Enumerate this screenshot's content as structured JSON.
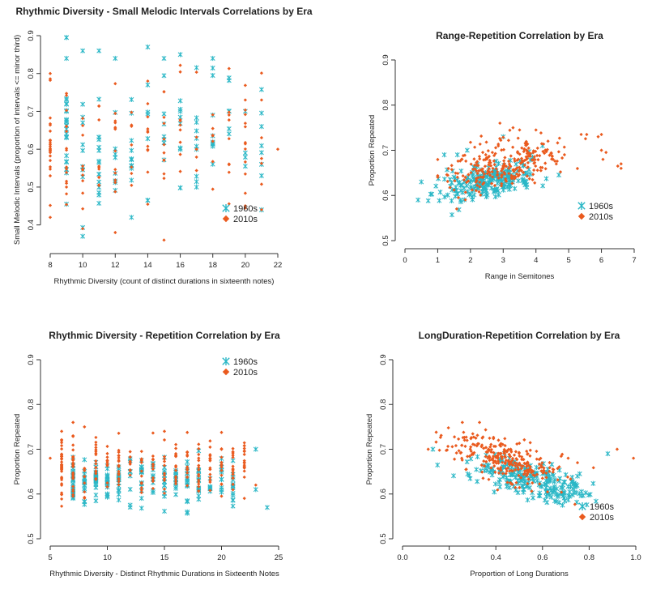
{
  "colors": {
    "series_1960s": "#2ab7c6",
    "series_2010s": "#ea5a1e",
    "axis": "#333333"
  },
  "chart_data": [
    {
      "type": "scatter",
      "title": "Rhythmic Diversity - Small Melodic Intervals Correlations by Era",
      "xlabel": "Rhythmic Diversity (count of distinct durations in sixteenth notes)",
      "ylabel": "Small Melodic Intervals (proportion of intervals <= minor third)",
      "xlim": [
        8,
        22
      ],
      "ylim": [
        0.35,
        0.9
      ],
      "xticks": [
        8,
        10,
        12,
        14,
        16,
        18,
        20,
        22
      ],
      "yticks": [
        0.4,
        0.5,
        0.6,
        0.7,
        0.8,
        0.9
      ],
      "legend": "right",
      "series": [
        {
          "name": "1960s",
          "marker": "asterisk",
          "gen": {
            "mode": "discrete",
            "xs": [
              9,
              10,
              11,
              12,
              13,
              14,
              15,
              16,
              17,
              18,
              19,
              20,
              21
            ],
            "n": 120,
            "ymean": 0.62,
            "ysd": 0.09,
            "seed": 11
          },
          "x": [
            9,
            10,
            11,
            12,
            14,
            15,
            16,
            18,
            10,
            13,
            14,
            17,
            19,
            20,
            21,
            21
          ],
          "y": [
            0.84,
            0.86,
            0.86,
            0.84,
            0.87,
            0.84,
            0.85,
            0.84,
            0.37,
            0.42,
            0.77,
            0.5,
            0.7,
            0.7,
            0.66,
            0.56
          ]
        },
        {
          "name": "2010s",
          "marker": "diamond",
          "gen": {
            "mode": "discrete",
            "xs": [
              8,
              9,
              10,
              11,
              12,
              13,
              14,
              15,
              16,
              17,
              18,
              19,
              20,
              21
            ],
            "n": 150,
            "ymean": 0.62,
            "ysd": 0.08,
            "seed": 23
          },
          "x": [
            8,
            8,
            10,
            12,
            14,
            15,
            20,
            21,
            22
          ],
          "y": [
            0.8,
            0.42,
            0.39,
            0.38,
            0.78,
            0.36,
            0.73,
            0.73,
            0.6
          ]
        }
      ]
    },
    {
      "type": "scatter",
      "title": "Range-Repetition Correlation by Era",
      "xlabel": "Range in Semitones",
      "ylabel": "Proportion Repeated",
      "xlim": [
        0,
        7
      ],
      "ylim": [
        0.5,
        0.9
      ],
      "xticks": [
        0,
        1,
        2,
        3,
        4,
        5,
        6,
        7
      ],
      "yticks": [
        0.5,
        0.6,
        0.7,
        0.8,
        0.9
      ],
      "legend": "right",
      "series": [
        {
          "name": "1960s",
          "marker": "asterisk",
          "gen": {
            "mode": "continuous",
            "n": 230,
            "xmean": 2.5,
            "xsd": 0.8,
            "xmin": 0.4,
            "xmax": 5.5,
            "slope": 0.014,
            "ybase": 0.595,
            "ysd": 0.02,
            "seed": 31
          },
          "x": [
            0.4,
            0.5,
            1.2,
            1.6,
            1.9,
            3.0,
            4.2
          ],
          "y": [
            0.59,
            0.63,
            0.69,
            0.69,
            0.7,
            0.73,
            0.71
          ]
        },
        {
          "name": "2010s",
          "marker": "diamond",
          "gen": {
            "mode": "continuous",
            "n": 270,
            "xmean": 3.1,
            "xsd": 0.95,
            "xmin": 1.0,
            "xmax": 6.7,
            "slope": 0.012,
            "ybase": 0.63,
            "ysd": 0.025,
            "seed": 47
          },
          "x": [
            2.9,
            3.3,
            3.5,
            5.9,
            6.0,
            6.5,
            6.6,
            6.6,
            6.0,
            4.0
          ],
          "y": [
            0.76,
            0.75,
            0.745,
            0.73,
            0.735,
            0.665,
            0.67,
            0.66,
            0.7,
            0.745
          ]
        }
      ]
    },
    {
      "type": "scatter",
      "title": "Rhythmic Diversity - Repetition Correlation by Era",
      "xlabel": "Rhythmic Diversity - Distinct Rhythmic Durations in Sixteenth Notes",
      "ylabel": "Proportion Repeated",
      "xlim": [
        5,
        25
      ],
      "ylim": [
        0.5,
        0.9
      ],
      "xticks": [
        5,
        10,
        15,
        20,
        25
      ],
      "yticks": [
        0.5,
        0.6,
        0.7,
        0.8,
        0.9
      ],
      "legend": "top-right",
      "series": [
        {
          "name": "1960s",
          "marker": "asterisk",
          "gen": {
            "mode": "discrete",
            "xs": [
              7,
              8,
              9,
              10,
              11,
              12,
              13,
              14,
              15,
              16,
              17,
              18,
              19,
              20,
              21
            ],
            "n": 230,
            "ymean": 0.628,
            "ysd": 0.025,
            "seed": 53
          },
          "x": [
            23,
            23,
            24,
            17
          ],
          "y": [
            0.7,
            0.61,
            0.57,
            0.56
          ]
        },
        {
          "name": "2010s",
          "marker": "diamond",
          "gen": {
            "mode": "discrete",
            "xs": [
              6,
              7,
              8,
              9,
              10,
              11,
              12,
              13,
              14,
              15,
              16,
              17,
              18,
              19,
              20,
              21,
              22
            ],
            "n": 270,
            "ymean": 0.66,
            "ysd": 0.03,
            "seed": 67
          },
          "x": [
            5,
            6,
            7,
            7,
            8,
            22,
            23
          ],
          "y": [
            0.68,
            0.74,
            0.76,
            0.73,
            0.75,
            0.66,
            0.62
          ]
        }
      ]
    },
    {
      "type": "scatter",
      "title": "LongDuration-Repetition Correlation by Era",
      "xlabel": "Proportion of Long Durations",
      "ylabel": "Proportion Repeated",
      "xlim": [
        0,
        1
      ],
      "ylim": [
        0.5,
        0.9
      ],
      "xticks": [
        0.0,
        0.2,
        0.4,
        0.6,
        0.8,
        1.0
      ],
      "yticks": [
        0.5,
        0.6,
        0.7,
        0.8,
        0.9
      ],
      "legend": "bottom-right",
      "series": [
        {
          "name": "1960s",
          "marker": "asterisk",
          "gen": {
            "mode": "continuous",
            "n": 230,
            "xmean": 0.55,
            "xsd": 0.13,
            "xmin": 0.15,
            "xmax": 0.9,
            "slope": -0.13,
            "ybase": 0.705,
            "ysd": 0.02,
            "seed": 79
          },
          "x": [
            0.13,
            0.75,
            0.88
          ],
          "y": [
            0.7,
            0.64,
            0.69
          ]
        },
        {
          "name": "2010s",
          "marker": "diamond",
          "gen": {
            "mode": "continuous",
            "n": 270,
            "xmean": 0.42,
            "xsd": 0.13,
            "xmin": 0.11,
            "xmax": 1.0,
            "slope": -0.14,
            "ybase": 0.74,
            "ysd": 0.025,
            "seed": 97
          },
          "x": [
            0.11,
            0.33,
            0.92,
            0.99,
            0.75,
            0.71
          ],
          "y": [
            0.7,
            0.76,
            0.7,
            0.68,
            0.67,
            0.68
          ]
        }
      ]
    }
  ]
}
